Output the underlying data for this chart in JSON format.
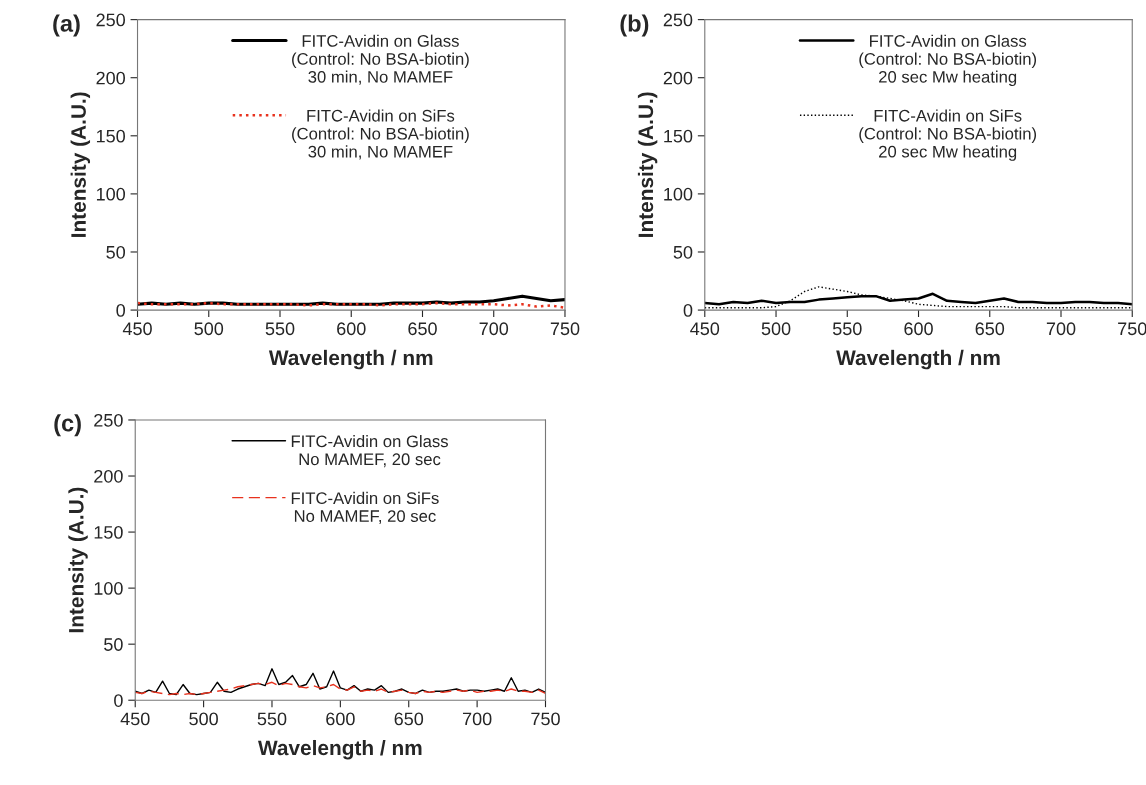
{
  "chart_data": [
    {
      "type": "line",
      "title": "(a)",
      "xlabel": "Wavelength / nm",
      "ylabel": "Intensity (A.U.)",
      "xlim": [
        450,
        750
      ],
      "xticks": [
        450,
        500,
        550,
        600,
        650,
        700,
        750
      ],
      "ylim": [
        0,
        250
      ],
      "yticks": [
        0,
        50,
        100,
        150,
        200,
        250
      ],
      "grid": false,
      "legend": "top",
      "x": [
        450,
        460,
        470,
        480,
        490,
        500,
        510,
        520,
        530,
        540,
        550,
        560,
        570,
        580,
        590,
        600,
        610,
        620,
        630,
        640,
        650,
        660,
        670,
        680,
        690,
        700,
        710,
        720,
        730,
        740,
        750
      ],
      "series": [
        {
          "name": "FITC-Avidin on Glass\n(Control: No BSA-biotin)\n30 min, No MAMEF",
          "color": "#000000",
          "line_style": "solid",
          "values": [
            5,
            6,
            5,
            6,
            5,
            6,
            6,
            5,
            5,
            5,
            5,
            5,
            5,
            6,
            5,
            5,
            5,
            5,
            6,
            6,
            6,
            7,
            6,
            7,
            7,
            8,
            10,
            12,
            10,
            8,
            9
          ]
        },
        {
          "name": "FITC-Avidin on SiFs\n(Control: No BSA-biotin)\n30 min, No MAMEF",
          "color": "#e8321e",
          "line_style": "dotted",
          "values": [
            6,
            5,
            5,
            5,
            5,
            6,
            5,
            5,
            5,
            5,
            5,
            5,
            4,
            5,
            5,
            5,
            5,
            4,
            5,
            5,
            5,
            6,
            5,
            5,
            5,
            5,
            4,
            5,
            3,
            4,
            2
          ]
        }
      ]
    },
    {
      "type": "line",
      "title": "(b)",
      "xlabel": "Wavelength / nm",
      "ylabel": "Intensity (A.U.)",
      "xlim": [
        450,
        750
      ],
      "xticks": [
        450,
        500,
        550,
        600,
        650,
        700,
        750
      ],
      "ylim": [
        0,
        250
      ],
      "yticks": [
        0,
        50,
        100,
        150,
        200,
        250
      ],
      "grid": false,
      "legend": "top",
      "x": [
        450,
        460,
        470,
        480,
        490,
        500,
        510,
        520,
        530,
        540,
        550,
        560,
        570,
        580,
        590,
        600,
        610,
        620,
        630,
        640,
        650,
        660,
        670,
        680,
        690,
        700,
        710,
        720,
        730,
        740,
        750
      ],
      "series": [
        {
          "name": "FITC-Avidin on Glass\n(Control: No BSA-biotin)\n20 sec Mw heating",
          "color": "#000000",
          "line_style": "solid",
          "values": [
            6,
            5,
            7,
            6,
            8,
            6,
            7,
            7,
            9,
            10,
            11,
            12,
            12,
            8,
            9,
            10,
            14,
            8,
            7,
            6,
            8,
            10,
            7,
            7,
            6,
            6,
            7,
            7,
            6,
            6,
            5
          ]
        },
        {
          "name": "FITC-Avidin on SiFs\n(Control: No BSA-biotin)\n20 sec Mw heating",
          "color": "#000000",
          "line_style": "dotted",
          "values": [
            2,
            2,
            2,
            2,
            2,
            3,
            8,
            16,
            20,
            18,
            16,
            13,
            12,
            10,
            8,
            5,
            4,
            3,
            3,
            3,
            3,
            3,
            2,
            2,
            2,
            2,
            2,
            2,
            2,
            2,
            2
          ]
        }
      ]
    },
    {
      "type": "line",
      "title": "(c)",
      "xlabel": "Wavelength / nm",
      "ylabel": "Intensity (A.U.)",
      "xlim": [
        450,
        750
      ],
      "xticks": [
        450,
        500,
        550,
        600,
        650,
        700,
        750
      ],
      "ylim": [
        0,
        250
      ],
      "yticks": [
        0,
        50,
        100,
        150,
        200,
        250
      ],
      "grid": false,
      "legend": "top",
      "x": [
        450,
        455,
        460,
        465,
        470,
        475,
        480,
        485,
        490,
        495,
        500,
        505,
        510,
        515,
        520,
        525,
        530,
        535,
        540,
        545,
        550,
        555,
        560,
        565,
        570,
        575,
        580,
        585,
        590,
        595,
        600,
        605,
        610,
        615,
        620,
        625,
        630,
        635,
        640,
        645,
        650,
        655,
        660,
        665,
        670,
        675,
        680,
        685,
        690,
        695,
        700,
        705,
        710,
        715,
        720,
        725,
        730,
        735,
        740,
        745,
        750
      ],
      "series": [
        {
          "name": "FITC-Avidin on Glass\nNo MAMEF, 20 sec",
          "color": "#000000",
          "line_style": "solid",
          "values": [
            8,
            6,
            9,
            7,
            17,
            6,
            5,
            14,
            6,
            5,
            6,
            7,
            16,
            8,
            7,
            10,
            12,
            14,
            15,
            13,
            28,
            14,
            16,
            22,
            12,
            14,
            24,
            10,
            12,
            26,
            11,
            9,
            13,
            8,
            10,
            9,
            13,
            7,
            8,
            10,
            7,
            6,
            9,
            7,
            8,
            8,
            9,
            10,
            8,
            9,
            9,
            8,
            9,
            10,
            8,
            20,
            8,
            9,
            7,
            10,
            7
          ]
        },
        {
          "name": "FITC-Avidin on SiFs\nNo MAMEF, 20 sec",
          "color": "#e8321e",
          "line_style": "dashed",
          "values": [
            7,
            6,
            8,
            7,
            6,
            5,
            6,
            5,
            6,
            5,
            6,
            7,
            8,
            9,
            10,
            12,
            13,
            14,
            15,
            14,
            16,
            13,
            15,
            14,
            12,
            11,
            13,
            11,
            12,
            14,
            10,
            9,
            12,
            8,
            9,
            8,
            10,
            7,
            8,
            9,
            7,
            6,
            8,
            7,
            8,
            7,
            8,
            9,
            8,
            9,
            7,
            8,
            8,
            9,
            8,
            10,
            8,
            8,
            7,
            9,
            6
          ]
        }
      ]
    }
  ]
}
